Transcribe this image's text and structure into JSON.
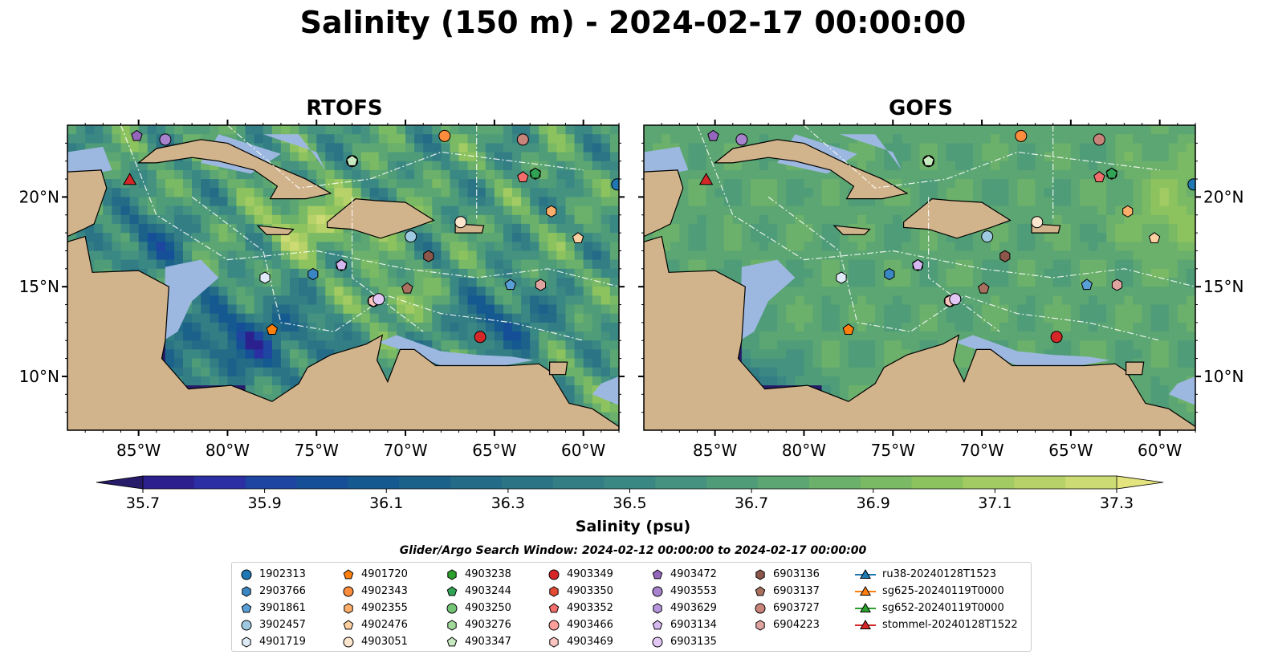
{
  "title": "Salinity (150 m) - 2024-02-17 00:00:00",
  "panels": [
    {
      "title": "RTOFS"
    },
    {
      "title": "GOFS"
    }
  ],
  "chart_data": {
    "type": "heatmap",
    "title": "Salinity (150 m) - 2024-02-17 00:00:00",
    "panel_titles": [
      "RTOFS",
      "GOFS"
    ],
    "x_ticks": [
      "85°W",
      "80°W",
      "75°W",
      "70°W",
      "65°W",
      "60°W"
    ],
    "y_ticks_left": [
      "20°N",
      "15°N",
      "10°N"
    ],
    "y_ticks_right": [
      "20°N",
      "15°N",
      "10°N"
    ],
    "xlim": [
      -89,
      -58
    ],
    "ylim": [
      7,
      24
    ],
    "colorbar": {
      "label": "Salinity (psu)",
      "min": 35.7,
      "max": 37.3,
      "step": 0.1,
      "ticks": [
        "35.7",
        "35.9",
        "36.1",
        "36.3",
        "36.5",
        "36.7",
        "36.9",
        "37.1",
        "37.3"
      ],
      "extend": "both",
      "colors": [
        "#271c6a",
        "#2c208f",
        "#2b2fa3",
        "#1d45a1",
        "#154f97",
        "#145990",
        "#1b628b",
        "#236b87",
        "#2a7485",
        "#337e85",
        "#3a8884",
        "#44927f",
        "#4f9c79",
        "#5ba672",
        "#6bb06b",
        "#7bba64",
        "#8dc35f",
        "#a2cb63",
        "#b6d268",
        "#ccdb74",
        "#e4e47f"
      ]
    },
    "markers": [
      {
        "name": "1902313",
        "lon": -58.1,
        "lat": 20.7,
        "shape": "circle",
        "color": "#1f77b4"
      },
      {
        "name": "2903766",
        "lon": -75.2,
        "lat": 15.7,
        "shape": "hexagon",
        "color": "#3a86c2"
      },
      {
        "name": "3901861",
        "lon": -64.1,
        "lat": 15.1,
        "shape": "pentagon",
        "color": "#5aa0d8"
      },
      {
        "name": "3902457",
        "lon": -69.7,
        "lat": 17.8,
        "shape": "circle",
        "color": "#9ecae1"
      },
      {
        "name": "4901719",
        "lon": -77.9,
        "lat": 15.5,
        "shape": "hexagon",
        "color": "#deebf7"
      },
      {
        "name": "4901720",
        "lon": -77.5,
        "lat": 12.6,
        "shape": "pentagon",
        "color": "#ff7f0e"
      },
      {
        "name": "4902343",
        "lon": -67.8,
        "lat": 23.4,
        "shape": "circle",
        "color": "#fd8d3c"
      },
      {
        "name": "4902355",
        "lon": -61.8,
        "lat": 19.2,
        "shape": "hexagon",
        "color": "#fdae6b"
      },
      {
        "name": "4902476",
        "lon": -60.3,
        "lat": 17.7,
        "shape": "pentagon",
        "color": "#fdd0a2"
      },
      {
        "name": "4903051",
        "lon": -66.9,
        "lat": 18.6,
        "shape": "circle",
        "color": "#fee6ce"
      },
      {
        "name": "4903238",
        "lon": -62.7,
        "lat": 21.3,
        "shape": "hexagon",
        "color": "#2ca02c"
      },
      {
        "name": "4903244",
        "lon": -62.7,
        "lat": 21.3,
        "shape": "pentagon",
        "color": "#31a354"
      },
      {
        "name": "4903250",
        "lon": -73.0,
        "lat": 22.0,
        "shape": "circle",
        "color": "#74c476"
      },
      {
        "name": "4903276",
        "lon": -73.0,
        "lat": 22.0,
        "shape": "hexagon",
        "color": "#a1d99b"
      },
      {
        "name": "4903347",
        "lon": -73.0,
        "lat": 22.0,
        "shape": "pentagon",
        "color": "#c7e9c0"
      },
      {
        "name": "4903349",
        "lon": -65.8,
        "lat": 12.2,
        "shape": "circle",
        "color": "#d62728"
      },
      {
        "name": "4903350",
        "lon": -71.8,
        "lat": 14.2,
        "shape": "hexagon",
        "color": "#e34a33"
      },
      {
        "name": "4903352",
        "lon": -63.4,
        "lat": 21.1,
        "shape": "pentagon",
        "color": "#f46d6d"
      },
      {
        "name": "4903466",
        "lon": -71.8,
        "lat": 14.2,
        "shape": "circle",
        "color": "#fc9f9a"
      },
      {
        "name": "4903469",
        "lon": -71.8,
        "lat": 14.2,
        "shape": "hexagon",
        "color": "#fcc5c0"
      },
      {
        "name": "4903472",
        "lon": -85.1,
        "lat": 23.4,
        "shape": "pentagon",
        "color": "#9467bd"
      },
      {
        "name": "4903553",
        "lon": -83.5,
        "lat": 23.2,
        "shape": "circle",
        "color": "#a683cc"
      },
      {
        "name": "4903629",
        "lon": -73.6,
        "lat": 16.2,
        "shape": "hexagon",
        "color": "#b696dc"
      },
      {
        "name": "6903134",
        "lon": -73.6,
        "lat": 16.2,
        "shape": "pentagon",
        "color": "#d5b8ef"
      },
      {
        "name": "6903135",
        "lon": -71.5,
        "lat": 14.3,
        "shape": "circle",
        "color": "#e2c7f5"
      },
      {
        "name": "6903136",
        "lon": -68.7,
        "lat": 16.7,
        "shape": "hexagon",
        "color": "#8c564b"
      },
      {
        "name": "6903137",
        "lon": -69.9,
        "lat": 14.9,
        "shape": "pentagon",
        "color": "#a9705f"
      },
      {
        "name": "6903727",
        "lon": -63.4,
        "lat": 23.2,
        "shape": "circle",
        "color": "#c8837a"
      },
      {
        "name": "6904223",
        "lon": -62.4,
        "lat": 15.1,
        "shape": "hexagon",
        "color": "#e0a4a0"
      }
    ],
    "glider_tracks": [
      {
        "name": "ru38-20240128T1523",
        "color": "#1f77b4",
        "shape": "triangle"
      },
      {
        "name": "sg625-20240119T0000",
        "color": "#ff7f0e",
        "shape": "triangle"
      },
      {
        "name": "sg652-20240119T0000",
        "color": "#2ca02c",
        "shape": "triangle"
      },
      {
        "name": "stommel-20240128T1522",
        "color": "#d62728",
        "shape": "triangle",
        "lon": -85.5,
        "lat": 20.9
      }
    ]
  },
  "colorbar_title": "Salinity (psu)",
  "search_window": "Glider/Argo Search Window: 2024-02-12 00:00:00 to 2024-02-17 00:00:00",
  "legend": {
    "columns": [
      [
        {
          "label": "1902313",
          "shape": "circle",
          "color": "#1f77b4"
        },
        {
          "label": "2903766",
          "shape": "hexagon",
          "color": "#3a86c2"
        },
        {
          "label": "3901861",
          "shape": "pentagon",
          "color": "#5aa0d8"
        },
        {
          "label": "3902457",
          "shape": "circle",
          "color": "#9ecae1"
        },
        {
          "label": "4901719",
          "shape": "hexagon",
          "color": "#deebf7"
        }
      ],
      [
        {
          "label": "4901720",
          "shape": "pentagon",
          "color": "#ff7f0e"
        },
        {
          "label": "4902343",
          "shape": "circle",
          "color": "#fd8d3c"
        },
        {
          "label": "4902355",
          "shape": "hexagon",
          "color": "#fdae6b"
        },
        {
          "label": "4902476",
          "shape": "pentagon",
          "color": "#fdd0a2"
        },
        {
          "label": "4903051",
          "shape": "circle",
          "color": "#fee6ce"
        }
      ],
      [
        {
          "label": "4903238",
          "shape": "hexagon",
          "color": "#2ca02c"
        },
        {
          "label": "4903244",
          "shape": "pentagon",
          "color": "#31a354"
        },
        {
          "label": "4903250",
          "shape": "circle",
          "color": "#74c476"
        },
        {
          "label": "4903276",
          "shape": "hexagon",
          "color": "#a1d99b"
        },
        {
          "label": "4903347",
          "shape": "pentagon",
          "color": "#c7e9c0"
        }
      ],
      [
        {
          "label": "4903349",
          "shape": "circle",
          "color": "#d62728"
        },
        {
          "label": "4903350",
          "shape": "hexagon",
          "color": "#e34a33"
        },
        {
          "label": "4903352",
          "shape": "pentagon",
          "color": "#f46d6d"
        },
        {
          "label": "4903466",
          "shape": "circle",
          "color": "#fc9f9a"
        },
        {
          "label": "4903469",
          "shape": "hexagon",
          "color": "#fcc5c0"
        }
      ],
      [
        {
          "label": "4903472",
          "shape": "pentagon",
          "color": "#9467bd"
        },
        {
          "label": "4903553",
          "shape": "circle",
          "color": "#a683cc"
        },
        {
          "label": "4903629",
          "shape": "hexagon",
          "color": "#b696dc"
        },
        {
          "label": "6903134",
          "shape": "pentagon",
          "color": "#d5b8ef"
        },
        {
          "label": "6903135",
          "shape": "circle",
          "color": "#e2c7f5"
        }
      ],
      [
        {
          "label": "6903136",
          "shape": "hexagon",
          "color": "#8c564b"
        },
        {
          "label": "6903137",
          "shape": "pentagon",
          "color": "#a9705f"
        },
        {
          "label": "6903727",
          "shape": "circle",
          "color": "#c8837a"
        },
        {
          "label": "6904223",
          "shape": "hexagon",
          "color": "#e0a4a0"
        }
      ],
      [
        {
          "label": "ru38-20240128T1523",
          "shape": "triangle-line",
          "color": "#1f77b4"
        },
        {
          "label": "sg625-20240119T0000",
          "shape": "triangle-line",
          "color": "#ff7f0e"
        },
        {
          "label": "sg652-20240119T0000",
          "shape": "triangle-line",
          "color": "#2ca02c"
        },
        {
          "label": "stommel-20240128T1522",
          "shape": "triangle-line",
          "color": "#d62728"
        }
      ]
    ]
  },
  "map_colors": {
    "land": "#d2b48c",
    "shelf": "#9db8e0",
    "border": "#000000"
  }
}
